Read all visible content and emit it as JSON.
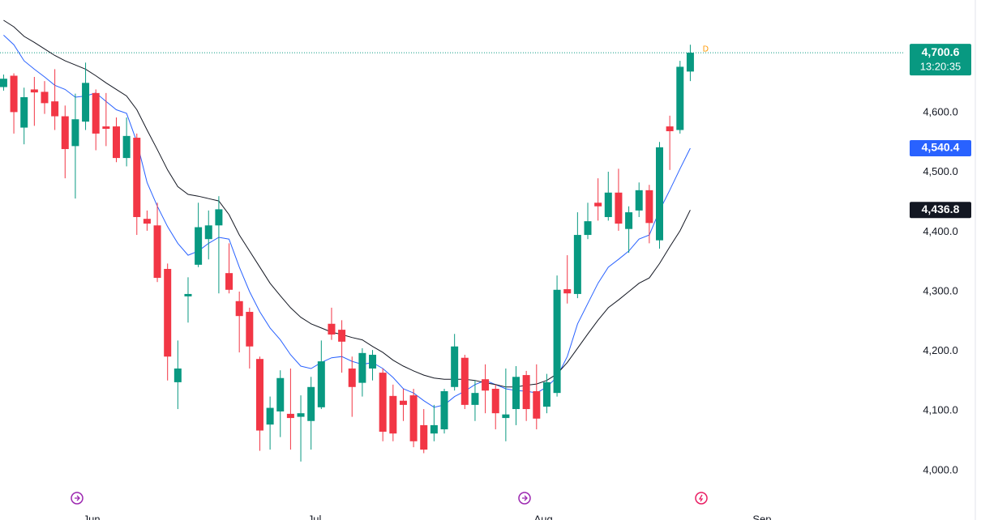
{
  "chart_data": {
    "type": "candlestick",
    "candles": {
      "up_color": "#089981",
      "down_color": "#f23645",
      "open": [
        4643,
        4662,
        4575,
        4639,
        4635,
        4619,
        4594,
        4544,
        4585,
        4633,
        4577,
        4577,
        4524,
        4558,
        4422,
        4411,
        4338,
        4148,
        4292,
        4345,
        4388,
        4411,
        4331,
        4284,
        4266,
        4187,
        4077,
        4099,
        4095,
        4090,
        4083,
        4106,
        4246,
        4236,
        4171,
        4147,
        4171,
        4164,
        4125,
        4117,
        4126,
        4076,
        4062,
        4069,
        4140,
        4189,
        4110,
        4153,
        4137,
        4088,
        4103,
        4160,
        4133,
        4107,
        4130,
        4304,
        4296,
        4395,
        4449,
        4425,
        4466,
        4405,
        4436,
        4470,
        4386,
        4577,
        4571,
        4669
      ],
      "high": [
        4664,
        4666,
        4642,
        4660,
        4653,
        4673,
        4612,
        4632,
        4684,
        4639,
        4633,
        4592,
        4592,
        4565,
        4436,
        4449,
        4347,
        4218,
        4324,
        4449,
        4436,
        4460,
        4381,
        4300,
        4273,
        4191,
        4124,
        4168,
        4171,
        4126,
        4157,
        4218,
        4273,
        4252,
        4191,
        4205,
        4202,
        4171,
        4144,
        4137,
        4137,
        4103,
        4110,
        4137,
        4229,
        4194,
        4151,
        4178,
        4144,
        4171,
        4175,
        4167,
        4178,
        4162,
        4327,
        4361,
        4433,
        4449,
        4490,
        4501,
        4506,
        4443,
        4483,
        4479,
        4551,
        4595,
        4687,
        4714
      ],
      "low": [
        4637,
        4565,
        4547,
        4578,
        4598,
        4571,
        4490,
        4456,
        4571,
        4537,
        4544,
        4517,
        4510,
        4395,
        4402,
        4316,
        4151,
        4103,
        4248,
        4341,
        4354,
        4297,
        4297,
        4198,
        4171,
        4033,
        4035,
        4056,
        4035,
        4015,
        4035,
        4103,
        4219,
        4164,
        4090,
        4124,
        4151,
        4049,
        4049,
        4083,
        4039,
        4029,
        4049,
        4062,
        4134,
        4103,
        4083,
        4096,
        4069,
        4049,
        4076,
        4083,
        4069,
        4096,
        4124,
        4280,
        4289,
        4388,
        4419,
        4419,
        4402,
        4365,
        4425,
        4381,
        4372,
        4504,
        4565,
        4653
      ],
      "close": [
        4657,
        4601,
        4626,
        4634,
        4616,
        4594,
        4539,
        4589,
        4650,
        4565,
        4573,
        4524,
        4561,
        4425,
        4414,
        4323,
        4191,
        4171,
        4296,
        4408,
        4411,
        4438,
        4303,
        4259,
        4208,
        4067,
        4105,
        4155,
        4088,
        4096,
        4140,
        4183,
        4228,
        4216,
        4140,
        4197,
        4194,
        4065,
        4062,
        4110,
        4049,
        4035,
        4076,
        4133,
        4208,
        4110,
        4130,
        4134,
        4096,
        4094,
        4157,
        4103,
        4087,
        4148,
        4303,
        4297,
        4395,
        4418,
        4443,
        4466,
        4414,
        4433,
        4470,
        4415,
        4542,
        4569,
        4677,
        4700.6
      ]
    },
    "series": [
      {
        "color": "#2962ff",
        "values": [
          4730,
          4714,
          4687,
          4673,
          4660,
          4646,
          4639,
          4626,
          4628,
          4633,
          4619,
          4605,
          4599,
          4551,
          4483,
          4443,
          4409,
          4381,
          4361,
          4368,
          4381,
          4391,
          4388,
          4341,
          4300,
          4266,
          4239,
          4219,
          4194,
          4175,
          4171,
          4181,
          4189,
          4191,
          4183,
          4178,
          4181,
          4171,
          4156,
          4137,
          4130,
          4117,
          4106,
          4110,
          4124,
          4133,
          4144,
          4151,
          4144,
          4137,
          4134,
          4133,
          4130,
          4140,
          4157,
          4191,
          4246,
          4280,
          4314,
          4341,
          4354,
          4368,
          4388,
          4395,
          4436,
          4470,
          4506,
          4540.4
        ]
      },
      {
        "color": "#131722",
        "values": [
          4755,
          4744,
          4728,
          4718,
          4707,
          4696,
          4687,
          4680,
          4673,
          4662,
          4650,
          4639,
          4628,
          4605,
          4571,
          4538,
          4504,
          4476,
          4463,
          4460,
          4456,
          4452,
          4429,
          4395,
          4368,
          4341,
          4314,
          4293,
          4273,
          4257,
          4246,
          4239,
          4232,
          4228,
          4223,
          4219,
          4208,
          4198,
          4185,
          4175,
          4167,
          4160,
          4155,
          4153,
          4153,
          4153,
          4151,
          4147,
          4144,
          4140,
          4140,
          4143,
          4145,
          4151,
          4162,
          4181,
          4205,
          4229,
          4252,
          4273,
          4286,
          4300,
          4314,
          4323,
          4347,
          4375,
          4402,
          4436.8
        ]
      }
    ],
    "ylim": [
      3974,
      4789
    ],
    "yticks": [
      {
        "value": 4000,
        "label": "4,000.0"
      },
      {
        "value": 4100,
        "label": "4,100.0"
      },
      {
        "value": 4200,
        "label": "4,200.0"
      },
      {
        "value": 4300,
        "label": "4,300.0"
      },
      {
        "value": 4400,
        "label": "4,400.0"
      },
      {
        "value": 4500,
        "label": "4,500.0"
      },
      {
        "value": 4600,
        "label": "4,600.0"
      }
    ],
    "xlim": [
      -0.35,
      87.85
    ],
    "xticks": [
      {
        "value": 8.6,
        "label": "Jun"
      },
      {
        "value": 30.35,
        "label": "Jul"
      },
      {
        "value": 52.66,
        "label": "Aug"
      },
      {
        "value": 74.0,
        "label": "Sep"
      }
    ],
    "last_price": {
      "value": 4700.6,
      "label": "4,700.6",
      "time": "13:20:35",
      "color": "#089981"
    },
    "price_labels": [
      {
        "value": 4540.4,
        "label": "4,540.4",
        "color": "#2962ff"
      },
      {
        "value": 4436.8,
        "label": "4,436.8",
        "color": "#131722"
      }
    ],
    "marker": "D"
  }
}
